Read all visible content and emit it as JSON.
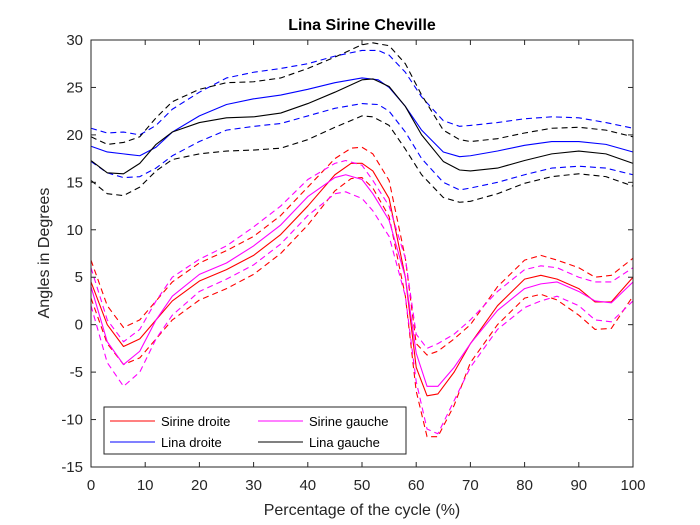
{
  "chart_data": {
    "type": "line",
    "title": "Lina Sirine Cheville",
    "xlabel": "Percentage of the cycle (%)",
    "ylabel": "Angles in Degrees",
    "xlim": [
      0,
      100
    ],
    "ylim": [
      -15,
      30
    ],
    "xticks": [
      0,
      10,
      20,
      30,
      40,
      50,
      60,
      70,
      80,
      90,
      100
    ],
    "yticks": [
      -15,
      -10,
      -5,
      0,
      5,
      10,
      15,
      20,
      25,
      30
    ],
    "grid": false,
    "legend_position": "bottom-left",
    "series": [
      {
        "name": "Sirine droite",
        "color": "#ff0000",
        "style": "solid",
        "legend": true,
        "x": [
          0,
          3,
          6,
          9,
          12,
          15,
          20,
          25,
          30,
          35,
          40,
          45,
          48,
          50,
          52,
          55,
          58,
          60,
          62,
          64,
          67,
          70,
          75,
          80,
          83,
          86,
          90,
          93,
          96,
          100
        ],
        "y": [
          4.5,
          0,
          -2.3,
          -1.5,
          0.5,
          2.5,
          4.6,
          5.8,
          7.3,
          9.5,
          12.5,
          15.8,
          17.0,
          17.0,
          16.2,
          13.3,
          5.0,
          -4.5,
          -7.5,
          -7.3,
          -5.0,
          -2.0,
          2.0,
          4.8,
          5.2,
          4.8,
          3.8,
          2.4,
          2.4,
          5.0
        ]
      },
      {
        "name": "",
        "color": "#ff0000",
        "style": "dashed",
        "legend": false,
        "x": [
          0,
          3,
          6,
          9,
          12,
          15,
          20,
          25,
          30,
          35,
          40,
          45,
          48,
          50,
          52,
          55,
          58,
          60,
          62,
          64,
          67,
          70,
          75,
          80,
          83,
          86,
          90,
          93,
          96,
          100
        ],
        "y": [
          6.8,
          2.0,
          -0.3,
          0.5,
          2.5,
          4.5,
          6.5,
          7.8,
          9.3,
          11.5,
          14.5,
          17.5,
          18.6,
          18.7,
          18.0,
          15.2,
          7.0,
          -2.0,
          -3.2,
          -2.8,
          -1.5,
          0.0,
          4.0,
          6.8,
          7.3,
          6.8,
          6.0,
          5.0,
          5.2,
          7.0
        ]
      },
      {
        "name": "",
        "color": "#ff0000",
        "style": "dashed",
        "legend": false,
        "x": [
          0,
          3,
          6,
          9,
          12,
          15,
          20,
          25,
          30,
          35,
          40,
          45,
          48,
          50,
          52,
          55,
          58,
          60,
          62,
          64,
          67,
          70,
          75,
          80,
          83,
          86,
          90,
          93,
          96,
          100
        ],
        "y": [
          2.8,
          -2.0,
          -4.2,
          -3.5,
          -1.5,
          0.5,
          2.6,
          3.8,
          5.3,
          7.5,
          10.5,
          14.1,
          15.4,
          15.5,
          14.4,
          11.4,
          3.0,
          -7.0,
          -11.8,
          -11.8,
          -8.5,
          -4.0,
          0.0,
          2.8,
          3.2,
          2.6,
          1.0,
          -0.5,
          -0.4,
          3.0
        ]
      },
      {
        "name": "Sirine gauche",
        "color": "#ff00ff",
        "style": "solid",
        "legend": true,
        "x": [
          0,
          3,
          6,
          9,
          12,
          15,
          20,
          25,
          30,
          35,
          40,
          45,
          47,
          50,
          52,
          55,
          58,
          60,
          62,
          64,
          67,
          70,
          75,
          80,
          83,
          86,
          90,
          93,
          96,
          100
        ],
        "y": [
          4.0,
          -1.8,
          -4.2,
          -2.8,
          0.5,
          3.0,
          5.3,
          6.5,
          8.3,
          10.5,
          13.5,
          15.5,
          15.8,
          15.3,
          13.8,
          11.0,
          5.0,
          -3.0,
          -6.5,
          -6.5,
          -4.5,
          -2.0,
          1.5,
          3.8,
          4.3,
          4.5,
          3.5,
          2.5,
          2.3,
          4.5
        ]
      },
      {
        "name": "",
        "color": "#ff00ff",
        "style": "dashed",
        "legend": false,
        "x": [
          0,
          3,
          6,
          9,
          12,
          15,
          20,
          25,
          30,
          35,
          40,
          45,
          47,
          50,
          52,
          55,
          58,
          60,
          62,
          64,
          67,
          70,
          75,
          80,
          83,
          86,
          90,
          93,
          96,
          100
        ],
        "y": [
          6.0,
          0.5,
          -1.8,
          -0.5,
          2.5,
          5.0,
          6.9,
          8.3,
          10.3,
          12.5,
          15.3,
          17.0,
          17.3,
          16.8,
          15.2,
          12.5,
          7.0,
          -1.0,
          -2.5,
          -2.0,
          -1.0,
          0.5,
          3.5,
          5.8,
          6.2,
          6.0,
          5.0,
          4.5,
          4.5,
          6.0
        ]
      },
      {
        "name": "",
        "color": "#ff00ff",
        "style": "dashed",
        "legend": false,
        "x": [
          0,
          3,
          6,
          9,
          12,
          15,
          20,
          25,
          30,
          35,
          40,
          45,
          47,
          50,
          52,
          55,
          58,
          60,
          62,
          64,
          67,
          70,
          75,
          80,
          83,
          86,
          90,
          93,
          96,
          100
        ],
        "y": [
          2.0,
          -4.0,
          -6.5,
          -5.0,
          -1.5,
          1.0,
          3.5,
          4.8,
          6.3,
          8.5,
          11.5,
          13.8,
          14.0,
          13.3,
          12.0,
          9.3,
          3.0,
          -6.0,
          -11.0,
          -11.5,
          -8.0,
          -4.5,
          -0.5,
          1.8,
          2.5,
          3.0,
          2.0,
          0.5,
          0.3,
          2.5
        ]
      },
      {
        "name": "Lina droite",
        "color": "#0000ff",
        "style": "solid",
        "legend": true,
        "x": [
          0,
          3,
          6,
          9,
          12,
          15,
          20,
          25,
          30,
          35,
          40,
          45,
          50,
          53,
          55,
          58,
          61,
          65,
          68,
          70,
          75,
          80,
          85,
          90,
          95,
          100
        ],
        "y": [
          18.8,
          18.2,
          18.0,
          17.8,
          18.7,
          20.3,
          22.0,
          23.2,
          23.8,
          24.2,
          24.8,
          25.5,
          26.0,
          25.8,
          25.0,
          23.0,
          20.5,
          18.2,
          17.7,
          17.8,
          18.3,
          18.9,
          19.3,
          19.3,
          19.0,
          18.2
        ]
      },
      {
        "name": "",
        "color": "#0000ff",
        "style": "dashed",
        "legend": false,
        "x": [
          0,
          3,
          6,
          9,
          12,
          15,
          20,
          25,
          30,
          35,
          40,
          45,
          50,
          53,
          55,
          58,
          61,
          65,
          68,
          70,
          75,
          80,
          85,
          90,
          95,
          100
        ],
        "y": [
          20.7,
          20.2,
          20.3,
          20.0,
          21.0,
          22.7,
          24.5,
          26.0,
          26.6,
          27.0,
          27.5,
          28.3,
          28.9,
          28.9,
          28.4,
          26.6,
          24.0,
          21.5,
          20.9,
          21.0,
          21.3,
          21.7,
          21.9,
          21.8,
          21.3,
          20.7
        ]
      },
      {
        "name": "",
        "color": "#0000ff",
        "style": "dashed",
        "legend": false,
        "x": [
          0,
          3,
          6,
          9,
          12,
          15,
          20,
          25,
          30,
          35,
          40,
          45,
          50,
          53,
          55,
          58,
          61,
          65,
          68,
          70,
          75,
          80,
          85,
          90,
          95,
          100
        ],
        "y": [
          17.2,
          16.0,
          15.5,
          15.6,
          16.5,
          17.8,
          19.3,
          20.5,
          20.9,
          21.2,
          22.0,
          22.8,
          23.3,
          23.2,
          22.5,
          20.3,
          17.5,
          15.0,
          14.2,
          14.4,
          15.0,
          15.8,
          16.5,
          16.7,
          16.5,
          15.8
        ]
      },
      {
        "name": "Lina gauche",
        "color": "#000000",
        "style": "solid",
        "legend": true,
        "x": [
          0,
          3,
          6,
          9,
          12,
          15,
          20,
          25,
          30,
          35,
          40,
          45,
          50,
          52,
          55,
          58,
          61,
          65,
          68,
          70,
          75,
          80,
          85,
          90,
          95,
          100
        ],
        "y": [
          17.3,
          16.0,
          15.9,
          17.0,
          19.0,
          20.3,
          21.3,
          21.8,
          21.9,
          22.3,
          23.3,
          24.5,
          25.8,
          25.9,
          25.1,
          23.0,
          20.0,
          17.2,
          16.3,
          16.2,
          16.5,
          17.3,
          18.0,
          18.3,
          18.0,
          17.0
        ]
      },
      {
        "name": "",
        "color": "#000000",
        "style": "dashed",
        "legend": false,
        "x": [
          0,
          3,
          6,
          9,
          12,
          15,
          20,
          25,
          30,
          35,
          40,
          45,
          50,
          52,
          55,
          58,
          61,
          65,
          68,
          70,
          75,
          80,
          85,
          90,
          95,
          100
        ],
        "y": [
          19.8,
          19.0,
          19.2,
          19.8,
          21.8,
          23.5,
          24.8,
          25.5,
          25.6,
          26.0,
          27.0,
          28.2,
          29.5,
          29.7,
          29.4,
          27.5,
          24.2,
          20.5,
          19.5,
          19.3,
          19.6,
          20.2,
          20.7,
          20.8,
          20.5,
          19.8
        ]
      },
      {
        "name": "",
        "color": "#000000",
        "style": "dashed",
        "legend": false,
        "x": [
          0,
          3,
          6,
          9,
          12,
          15,
          20,
          25,
          30,
          35,
          40,
          45,
          50,
          52,
          55,
          58,
          61,
          65,
          68,
          70,
          75,
          80,
          85,
          90,
          95,
          100
        ],
        "y": [
          15.2,
          13.8,
          13.6,
          14.5,
          16.2,
          17.4,
          18.0,
          18.3,
          18.4,
          18.6,
          19.5,
          20.8,
          22.0,
          21.9,
          21.0,
          18.5,
          15.8,
          13.4,
          12.9,
          13.0,
          13.8,
          14.9,
          15.6,
          15.9,
          15.6,
          14.6
        ]
      }
    ]
  }
}
